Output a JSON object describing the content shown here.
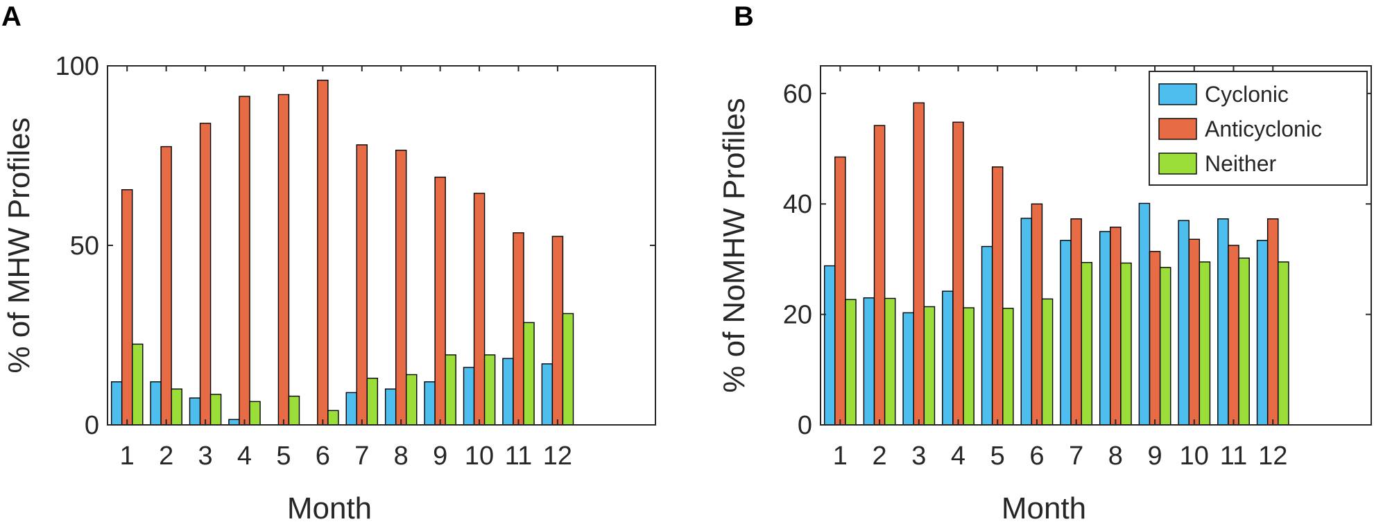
{
  "panels": {
    "a": {
      "letter": "A"
    },
    "b": {
      "letter": "B"
    }
  },
  "colors": {
    "cyclonic": "#4DBEEE",
    "anticyclonic": "#E76B45",
    "neither": "#9BDE3A",
    "axis": "#262626"
  },
  "chart_data": [
    {
      "type": "bar",
      "panel": "A",
      "title": "",
      "xlabel": "Month",
      "ylabel": "% of MHW Profiles",
      "categories": [
        "1",
        "2",
        "3",
        "4",
        "5",
        "6",
        "7",
        "8",
        "9",
        "10",
        "11",
        "12"
      ],
      "xlim": [
        0.5,
        14.5
      ],
      "ylim": [
        0,
        100
      ],
      "yticks": [
        0,
        50,
        100
      ],
      "series": [
        {
          "name": "Cyclonic",
          "values": [
            12,
            12,
            7.5,
            1.5,
            0,
            0,
            9,
            10,
            12,
            16,
            18.5,
            17
          ]
        },
        {
          "name": "Anticyclonic",
          "values": [
            65.5,
            77.5,
            84,
            91.5,
            92,
            96,
            78,
            76.5,
            69,
            64.5,
            53.5,
            52.5
          ]
        },
        {
          "name": "Neither",
          "values": [
            22.5,
            10,
            8.5,
            6.5,
            8,
            4,
            13,
            14,
            19.5,
            19.5,
            28.5,
            31
          ]
        }
      ],
      "legend": null
    },
    {
      "type": "bar",
      "panel": "B",
      "title": "",
      "xlabel": "Month",
      "ylabel": "% of NoMHW Profiles",
      "categories": [
        "1",
        "2",
        "3",
        "4",
        "5",
        "6",
        "7",
        "8",
        "9",
        "10",
        "11",
        "12"
      ],
      "xlim": [
        0.5,
        14.5
      ],
      "ylim": [
        0,
        65
      ],
      "yticks": [
        0,
        20,
        40,
        60
      ],
      "series": [
        {
          "name": "Cyclonic",
          "values": [
            28.8,
            23,
            20.3,
            24.2,
            32.3,
            37.4,
            33.4,
            35,
            40.1,
            37,
            37.3,
            33.4
          ]
        },
        {
          "name": "Anticyclonic",
          "values": [
            48.5,
            54.2,
            58.3,
            54.8,
            46.7,
            40,
            37.3,
            35.8,
            31.4,
            33.6,
            32.5,
            37.3
          ]
        },
        {
          "name": "Neither",
          "values": [
            22.7,
            22.9,
            21.4,
            21.2,
            21.1,
            22.8,
            29.4,
            29.3,
            28.5,
            29.5,
            30.2,
            29.5
          ]
        }
      ],
      "legend": {
        "position": "top-right",
        "entries": [
          "Cyclonic",
          "Anticyclonic",
          "Neither"
        ]
      }
    }
  ]
}
